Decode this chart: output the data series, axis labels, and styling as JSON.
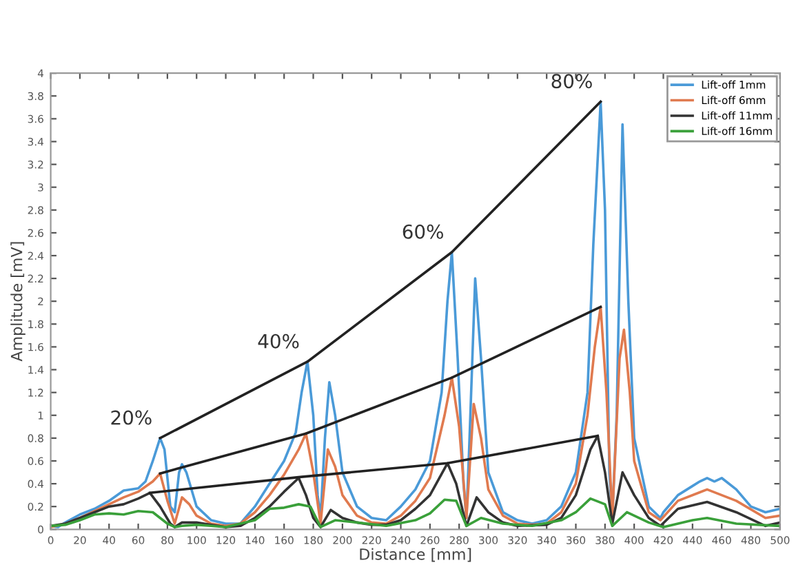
{
  "chart_data": {
    "type": "line",
    "xlabel": "Distance [mm]",
    "ylabel": "Amplitude [mV]",
    "xlim": [
      0,
      500
    ],
    "ylim": [
      0,
      4
    ],
    "xticks": [
      0,
      20,
      40,
      60,
      80,
      100,
      120,
      140,
      160,
      180,
      200,
      220,
      240,
      260,
      280,
      300,
      320,
      340,
      360,
      380,
      400,
      420,
      440,
      460,
      480,
      500
    ],
    "yticks": [
      0,
      0.2,
      0.4,
      0.6,
      0.8,
      1,
      1.2,
      1.4,
      1.6,
      1.8,
      2,
      2.2,
      2.4,
      2.6,
      2.8,
      3,
      3.2,
      3.4,
      3.6,
      3.8,
      4
    ],
    "grid": false,
    "legend": "top right",
    "marker": "none",
    "line_style": "solid",
    "series": [
      {
        "name": "Lift-off 1mm",
        "color": "#4a9ad8",
        "x": [
          0,
          5,
          10,
          20,
          30,
          40,
          50,
          60,
          65,
          70,
          75,
          78,
          82,
          85,
          88,
          90,
          93,
          100,
          110,
          120,
          130,
          140,
          150,
          160,
          168,
          172,
          176,
          180,
          183,
          185,
          188,
          191,
          195,
          200,
          210,
          220,
          230,
          240,
          250,
          260,
          268,
          272,
          275,
          279,
          283,
          285,
          287,
          291,
          295,
          300,
          310,
          320,
          330,
          340,
          350,
          360,
          368,
          372,
          377,
          380,
          383,
          385,
          388,
          392,
          396,
          400,
          410,
          418,
          420,
          430,
          440,
          445,
          450,
          455,
          460,
          470,
          480,
          490,
          500
        ],
        "values": [
          0.03,
          0.02,
          0.06,
          0.13,
          0.18,
          0.25,
          0.34,
          0.36,
          0.42,
          0.6,
          0.8,
          0.7,
          0.2,
          0.15,
          0.5,
          0.57,
          0.5,
          0.2,
          0.08,
          0.05,
          0.05,
          0.2,
          0.4,
          0.6,
          0.85,
          1.2,
          1.47,
          1.0,
          0.3,
          0.1,
          0.8,
          1.29,
          1.0,
          0.5,
          0.2,
          0.1,
          0.08,
          0.2,
          0.35,
          0.6,
          1.2,
          2.0,
          2.43,
          1.5,
          0.4,
          0.1,
          0.75,
          2.2,
          1.5,
          0.5,
          0.15,
          0.08,
          0.05,
          0.08,
          0.2,
          0.5,
          1.2,
          2.5,
          3.75,
          2.8,
          0.5,
          0.1,
          1.0,
          3.55,
          2.0,
          0.8,
          0.2,
          0.1,
          0.15,
          0.3,
          0.38,
          0.42,
          0.45,
          0.42,
          0.45,
          0.35,
          0.2,
          0.15,
          0.18
        ]
      },
      {
        "name": "Lift-off 6mm",
        "color": "#e07a4f",
        "x": [
          0,
          10,
          20,
          30,
          40,
          50,
          60,
          70,
          75,
          80,
          85,
          90,
          95,
          100,
          110,
          120,
          130,
          140,
          150,
          160,
          170,
          175,
          180,
          185,
          190,
          195,
          200,
          210,
          220,
          230,
          240,
          250,
          260,
          270,
          275,
          280,
          285,
          290,
          295,
          300,
          310,
          320,
          330,
          340,
          350,
          360,
          368,
          373,
          377,
          381,
          385,
          390,
          393,
          397,
          400,
          410,
          418,
          430,
          450,
          470,
          490,
          500
        ],
        "values": [
          0.02,
          0.05,
          0.1,
          0.16,
          0.22,
          0.28,
          0.33,
          0.42,
          0.49,
          0.25,
          0.05,
          0.28,
          0.22,
          0.12,
          0.05,
          0.03,
          0.05,
          0.15,
          0.3,
          0.48,
          0.7,
          0.84,
          0.5,
          0.05,
          0.7,
          0.55,
          0.3,
          0.12,
          0.06,
          0.05,
          0.12,
          0.25,
          0.45,
          1.0,
          1.33,
          0.9,
          0.1,
          1.1,
          0.8,
          0.35,
          0.12,
          0.05,
          0.04,
          0.05,
          0.15,
          0.4,
          1.0,
          1.6,
          1.95,
          1.2,
          0.1,
          1.5,
          1.75,
          1.2,
          0.6,
          0.15,
          0.08,
          0.25,
          0.35,
          0.25,
          0.1,
          0.12
        ]
      },
      {
        "name": "Lift-off 11mm",
        "color": "#333333",
        "x": [
          0,
          10,
          20,
          30,
          40,
          50,
          60,
          68,
          75,
          82,
          85,
          90,
          100,
          110,
          120,
          130,
          140,
          150,
          160,
          170,
          175,
          180,
          185,
          192,
          200,
          210,
          220,
          230,
          240,
          250,
          260,
          272,
          278,
          285,
          292,
          300,
          310,
          320,
          340,
          350,
          360,
          370,
          375,
          380,
          385,
          392,
          400,
          410,
          418,
          430,
          450,
          470,
          490,
          500
        ],
        "values": [
          0.03,
          0.05,
          0.1,
          0.15,
          0.2,
          0.22,
          0.27,
          0.32,
          0.2,
          0.05,
          0.02,
          0.06,
          0.06,
          0.04,
          0.02,
          0.03,
          0.1,
          0.2,
          0.33,
          0.45,
          0.3,
          0.1,
          0.02,
          0.17,
          0.1,
          0.06,
          0.04,
          0.04,
          0.08,
          0.18,
          0.3,
          0.58,
          0.4,
          0.03,
          0.28,
          0.15,
          0.06,
          0.03,
          0.04,
          0.1,
          0.3,
          0.7,
          0.82,
          0.5,
          0.05,
          0.5,
          0.3,
          0.1,
          0.03,
          0.18,
          0.24,
          0.15,
          0.03,
          0.06
        ]
      },
      {
        "name": "Lift-off 16mm",
        "color": "#3aa03a",
        "x": [
          0,
          10,
          20,
          30,
          40,
          50,
          60,
          70,
          80,
          85,
          90,
          100,
          110,
          120,
          140,
          150,
          160,
          170,
          178,
          185,
          195,
          210,
          230,
          250,
          260,
          270,
          278,
          285,
          295,
          310,
          330,
          350,
          360,
          370,
          380,
          385,
          395,
          410,
          420,
          440,
          450,
          470,
          500
        ],
        "values": [
          0.03,
          0.04,
          0.08,
          0.13,
          0.14,
          0.13,
          0.16,
          0.15,
          0.05,
          0.02,
          0.03,
          0.04,
          0.03,
          0.02,
          0.08,
          0.18,
          0.19,
          0.22,
          0.2,
          0.02,
          0.08,
          0.06,
          0.03,
          0.08,
          0.14,
          0.26,
          0.25,
          0.03,
          0.1,
          0.05,
          0.03,
          0.08,
          0.15,
          0.27,
          0.22,
          0.03,
          0.15,
          0.06,
          0.02,
          0.08,
          0.1,
          0.05,
          0.03
        ]
      },
      {
        "color": "#222222",
        "x": [
          75,
          176,
          275,
          377
        ],
        "values": [
          0.8,
          1.47,
          2.43,
          3.75
        ]
      },
      {
        "color": "#222222",
        "x": [
          75,
          175,
          275,
          377
        ],
        "values": [
          0.49,
          0.84,
          1.33,
          1.95
        ]
      },
      {
        "color": "#222222",
        "x": [
          68,
          172,
          272,
          375
        ],
        "values": [
          0.32,
          0.46,
          0.58,
          0.82
        ]
      }
    ],
    "annotations": [
      {
        "text": "20%",
        "x": 75,
        "y": 0.8
      },
      {
        "text": "40%",
        "x": 176,
        "y": 1.47
      },
      {
        "text": "60%",
        "x": 275,
        "y": 2.43
      },
      {
        "text": "80%",
        "x": 377,
        "y": 3.75
      }
    ]
  }
}
